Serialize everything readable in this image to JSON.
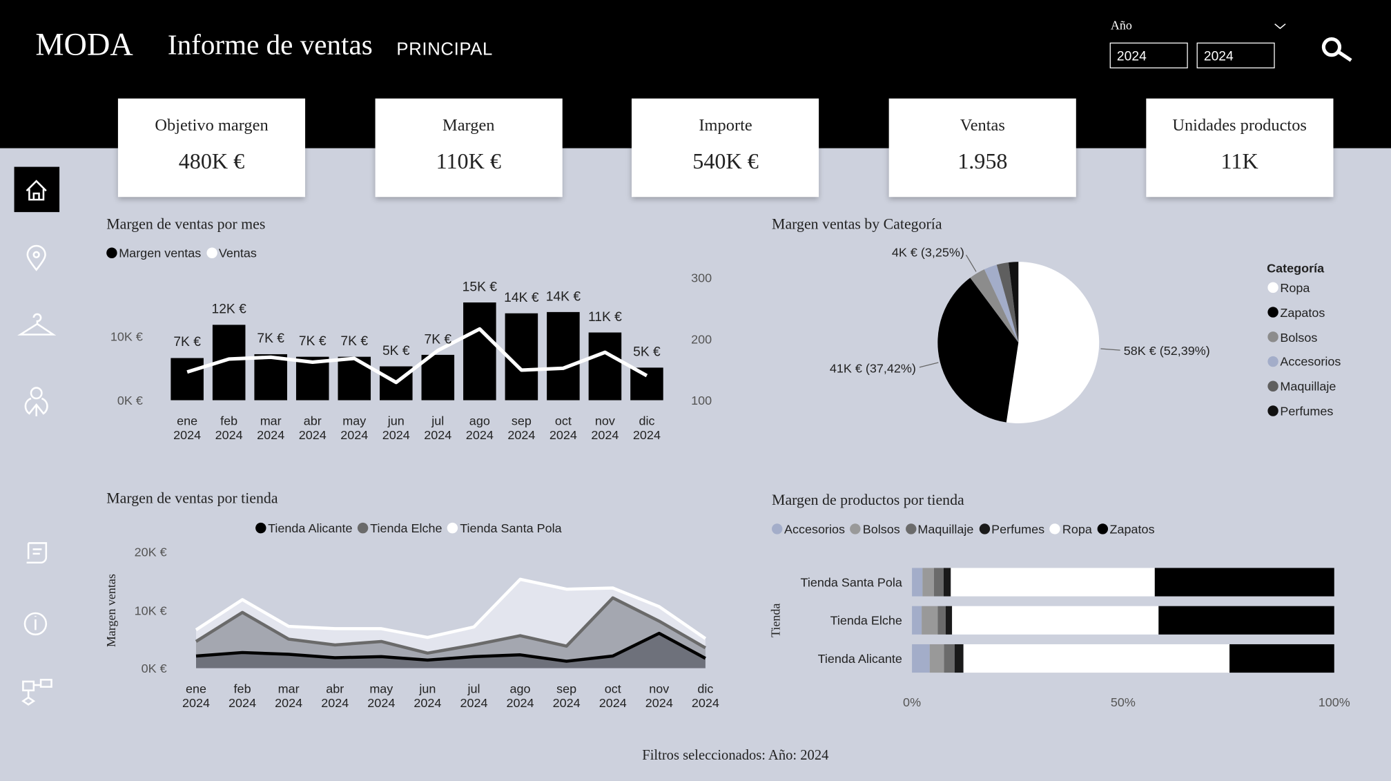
{
  "header": {
    "brand": "MODA",
    "title": "Informe de ventas",
    "section": "PRINCIPAL"
  },
  "filter": {
    "label": "Año",
    "from": "2024",
    "to": "2024"
  },
  "kpis": [
    {
      "label": "Objetivo margen",
      "value": "480K €"
    },
    {
      "label": "Margen",
      "value": "110K €"
    },
    {
      "label": "Importe",
      "value": "540K €"
    },
    {
      "label": "Ventas",
      "value": "1.958"
    },
    {
      "label": "Unidades productos",
      "value": "11K"
    }
  ],
  "chart_data": [
    {
      "type": "bar-line",
      "title": "Margen de ventas por mes",
      "categories": [
        "ene 2024",
        "feb 2024",
        "mar 2024",
        "abr 2024",
        "may 2024",
        "jun 2024",
        "jul 2024",
        "ago 2024",
        "sep 2024",
        "oct 2024",
        "nov 2024",
        "dic 2024"
      ],
      "series": [
        {
          "name": "Margen ventas",
          "type": "bar",
          "color": "#000000",
          "values": [
            6600,
            11800,
            7200,
            6800,
            6800,
            5300,
            7100,
            15300,
            13600,
            13800,
            10600,
            5100
          ],
          "value_labels": [
            "7K €",
            "12K €",
            "7K €",
            "7K €",
            "7K €",
            "5K €",
            "7K €",
            "15K €",
            "14K €",
            "14K €",
            "11K €",
            "5K €"
          ]
        },
        {
          "name": "Ventas",
          "type": "line",
          "axis": "y2",
          "color": "#ffffff",
          "values": [
            146,
            167,
            170,
            162,
            168,
            129,
            181,
            216,
            149,
            152,
            178,
            140
          ]
        }
      ],
      "ylim": [
        0,
        20000
      ],
      "yticks": [
        {
          "value": 0,
          "label": "0K €"
        },
        {
          "value": 10000,
          "label": "10K €"
        }
      ],
      "y2lim": [
        100,
        308
      ],
      "y2ticks": [
        100,
        200,
        300
      ]
    },
    {
      "type": "pie",
      "title": "Margen ventas by Categoría",
      "legend_title": "Categoría",
      "categories": [
        "Ropa",
        "Zapatos",
        "Bolsos",
        "Accesorios",
        "Maquillaje",
        "Perfumes"
      ],
      "values": [
        57630,
        41160,
        3575,
        2860,
        2640,
        2135
      ],
      "colors": [
        "#ffffff",
        "#000000",
        "#8c8c8c",
        "#a3adc9",
        "#5f5f5f",
        "#111111"
      ],
      "value_labels": [
        "58K € (52,39%)",
        "41K € (37,42%)",
        "4K € (3,25%)",
        null,
        null,
        null
      ]
    },
    {
      "type": "stacked-area",
      "title": "Margen de ventas por tienda",
      "ylabel": "Margen ventas",
      "categories": [
        "ene 2024",
        "feb 2024",
        "mar 2024",
        "abr 2024",
        "may 2024",
        "jun 2024",
        "jul 2024",
        "ago 2024",
        "sep 2024",
        "oct 2024",
        "nov 2024",
        "dic 2024"
      ],
      "series": [
        {
          "name": "Tienda Alicante",
          "color": "#000000",
          "fill": "#6e717b",
          "values": [
            2100,
            2700,
            2400,
            1800,
            2000,
            1400,
            2000,
            2300,
            1200,
            2100,
            6000,
            1700
          ]
        },
        {
          "name": "Tienda Elche",
          "color": "#6a6a6a",
          "fill": "#a4a7b0",
          "values": [
            2500,
            6900,
            2600,
            2200,
            2600,
            1200,
            2000,
            3300,
            2600,
            10000,
            2100,
            1800
          ]
        },
        {
          "name": "Tienda Santa Pola",
          "color": "#ffffff",
          "fill": "#e3e5ee",
          "values": [
            2000,
            2200,
            2200,
            2800,
            2200,
            2700,
            3100,
            9700,
            9800,
            1700,
            2500,
            1600
          ]
        }
      ],
      "ylim": [
        0,
        20000
      ],
      "yticks": [
        {
          "value": 0,
          "label": "0K €"
        },
        {
          "value": 10000,
          "label": "10K €"
        },
        {
          "value": 20000,
          "label": "20K €"
        }
      ]
    },
    {
      "type": "stacked-hbar",
      "title": "Margen de productos por tienda",
      "ylabel": "Tienda",
      "categories": [
        "Tienda Santa Pola",
        "Tienda Elche",
        "Tienda Alicante"
      ],
      "series": [
        {
          "name": "Accesorios",
          "color": "#a3adc9",
          "values": [
            2.5,
            2.3,
            4.2
          ]
        },
        {
          "name": "Bolsos",
          "color": "#999999",
          "values": [
            2.7,
            3.8,
            3.4
          ]
        },
        {
          "name": "Maquillaje",
          "color": "#6b6b6b",
          "values": [
            2.3,
            1.9,
            2.5
          ]
        },
        {
          "name": "Perfumes",
          "color": "#1a1a1a",
          "values": [
            1.7,
            1.5,
            2.1
          ]
        },
        {
          "name": "Ropa",
          "color": "#ffffff",
          "values": [
            48.3,
            48.9,
            63.0
          ]
        },
        {
          "name": "Zapatos",
          "color": "#000000",
          "values": [
            42.5,
            41.6,
            24.8
          ]
        }
      ],
      "xlim": [
        0,
        100
      ],
      "xticks": [
        {
          "value": 0,
          "label": "0%"
        },
        {
          "value": 50,
          "label": "50%"
        },
        {
          "value": 100,
          "label": "100%"
        }
      ]
    }
  ],
  "footer": "Filtros seleccionados: Año: 2024"
}
